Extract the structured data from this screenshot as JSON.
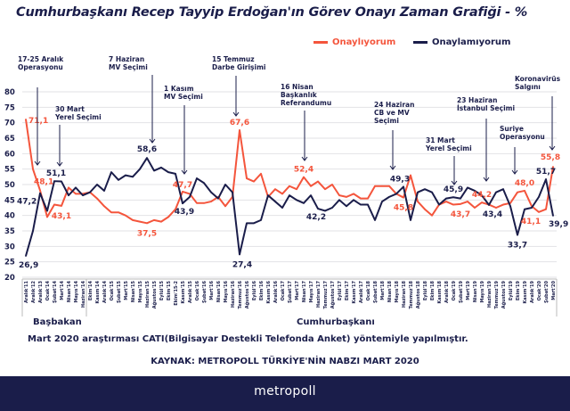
{
  "title": "Cumhurbaşkanı Recep Tayyip Erdoğan'ın Görev Onayı Zaman Grafiği - %",
  "colors": {
    "onayliyorum": "#f4553c",
    "onaylamiyorum": "#1a1d4a",
    "footer": "#1a1d4a"
  },
  "chart_data": {
    "type": "line",
    "title": "Cumhurbaşkanı Recep Tayyip Erdoğan'ın Görev Onayı Zaman Grafiği - %",
    "ylim": [
      20,
      80
    ],
    "yticks": [
      20,
      25,
      30,
      35,
      40,
      45,
      50,
      55,
      60,
      65,
      70,
      75,
      80
    ],
    "grid": true,
    "legend_position": "top-right",
    "categories": [
      "Aralık'11",
      "Aralık'12",
      "Aralık'13",
      "Ocak'14",
      "Şubat'14",
      "Mart'14",
      "Nisan'14",
      "Mayıs'14",
      "Haziran'14",
      "Ekim'14",
      "Kasım'14",
      "Aralık'14",
      "Ocak'15",
      "Şubat'15",
      "Mart'15",
      "Nisan'15",
      "Mayıs'15",
      "Haziran'15",
      "Ağustos'15",
      "Eylül'15",
      "Ekim'15",
      "Ekim'15-2",
      "Kasım'15",
      "Aralık'15",
      "Ocak'16",
      "Şubat'16",
      "Mart'16",
      "Nisan'16",
      "Mayıs'16",
      "Haziran'16",
      "Temmuz'16",
      "Ağustos'16",
      "Eylül'16",
      "Ekim'16",
      "Kasım'16",
      "Aralık'16",
      "Ocak'17",
      "Şubat'17",
      "Mart'17",
      "Nisan'17",
      "Mayıs'17",
      "Haziran'17",
      "Temmuz'17",
      "Ağustos'17",
      "Eylül'17",
      "Ekim'17",
      "Kasım'17",
      "Aralık'17",
      "Ocak'18",
      "Şubat'18",
      "Mart'18",
      "Nisan'18",
      "Mayıs'18",
      "Haziran'18",
      "Temmuz'18",
      "Ağustos'18",
      "Eylül'18",
      "Ekim'18",
      "Kasım'18",
      "Aralık'18",
      "Ocak'19",
      "Şubat'19",
      "Mart'19",
      "Nisan'19",
      "Mayıs'19",
      "Haziran'19",
      "Temmuz'19",
      "Ağustos'19",
      "Eylül'19",
      "Ekim'19",
      "Kasım'19",
      "Aralık'19",
      "Ocak'20",
      "Şubat'20",
      "Mart'20"
    ],
    "series": [
      {
        "name": "Onaylıyorum",
        "color": "#f4553c",
        "values": [
          71.1,
          55,
          48.1,
          39.5,
          43.5,
          43.1,
          49,
          47,
          47,
          47.5,
          45.5,
          43,
          41,
          41,
          40,
          38.5,
          38,
          37.5,
          38.5,
          38,
          39.5,
          42,
          47.7,
          47,
          44,
          44,
          44.5,
          46,
          43,
          46,
          67.6,
          52,
          51,
          53.5,
          46,
          48.5,
          47,
          49.5,
          48.5,
          52.4,
          49.5,
          51,
          48.5,
          50,
          46.5,
          46,
          47,
          45.5,
          45.5,
          49.5,
          49.5,
          49.5,
          47,
          45.8,
          53,
          44.5,
          42,
          40,
          43.5,
          44.5,
          43.5,
          43.7,
          44.5,
          42.5,
          44.2,
          43.5,
          42.5,
          43.5,
          44,
          47.5,
          48.0,
          43,
          41.1,
          42,
          55.8
        ],
        "labeled": [
          0,
          2,
          5,
          17,
          22,
          30,
          39,
          53,
          61,
          64,
          70,
          72,
          74
        ]
      },
      {
        "name": "Onaylamıyorum",
        "color": "#1a1d4a",
        "values": [
          26.9,
          35,
          47.2,
          41.5,
          51.1,
          51,
          46.5,
          49,
          46.5,
          47.5,
          50,
          48,
          54,
          51.5,
          53,
          52.5,
          55,
          58.6,
          54.5,
          55.5,
          54,
          53.5,
          43.9,
          46,
          52,
          50.5,
          47.5,
          45.5,
          50,
          47.5,
          27.4,
          37.5,
          37.5,
          38.5,
          46.5,
          44.5,
          42.5,
          46.5,
          45,
          44,
          46.5,
          42.2,
          41.5,
          42.5,
          45,
          43,
          45,
          43.5,
          43.5,
          38.5,
          44.5,
          46,
          47,
          49.3,
          38.5,
          47.5,
          48.5,
          47.5,
          43.5,
          45.5,
          45.9,
          45.5,
          49,
          48,
          46.5,
          43.4,
          47.5,
          48.5,
          43,
          33.7,
          42,
          42.5,
          46,
          51.7,
          39.9
        ],
        "labeled": [
          0,
          2,
          4,
          17,
          22,
          30,
          41,
          53,
          60,
          65,
          69,
          73,
          74
        ]
      }
    ],
    "periods": [
      {
        "label": "Başbakan",
        "from": "Aralık'11",
        "to": "Haziran'14"
      },
      {
        "label": "Cumhurbaşkanı",
        "from": "Ekim'14",
        "to": "Mart'20"
      }
    ],
    "annotations": [
      {
        "lines": [
          "17-25 Aralık",
          "Operasyonu"
        ],
        "at": "Aralık'13"
      },
      {
        "lines": [
          "30 Mart",
          "Yerel Seçimi"
        ],
        "at": "Mart'14"
      },
      {
        "lines": [
          "7 Haziran",
          "MV Seçimi"
        ],
        "at": "Haziran'15"
      },
      {
        "lines": [
          "1 Kasım",
          "MV Seçimi"
        ],
        "at": "Kasım'15"
      },
      {
        "lines": [
          "15 Temmuz",
          "Darbe Girişimi"
        ],
        "at": "Temmuz'16"
      },
      {
        "lines": [
          "16 Nisan",
          "Başkanlık",
          "Referandumu"
        ],
        "at": "Nisan'17"
      },
      {
        "lines": [
          "24 Haziran",
          "CB  ve MV",
          "Seçimi"
        ],
        "at": "Haziran'18"
      },
      {
        "lines": [
          "31 Mart",
          "Yerel Seçimi"
        ],
        "at": "Mart'19"
      },
      {
        "lines": [
          "23 Haziran",
          "İstanbul Seçimi"
        ],
        "at": "Haziran'19"
      },
      {
        "lines": [
          "Suriye",
          "Operasyonu"
        ],
        "at": "Ekim'19"
      },
      {
        "lines": [
          "Koronavirüs",
          "Salgını"
        ],
        "at": "Mart'20"
      }
    ]
  },
  "legend": {
    "approve": "Onaylıyorum",
    "disapprove": "Onaylamıyorum"
  },
  "groups": {
    "pm": "Başbakan",
    "president": "Cumhurbaşkanı"
  },
  "note": "Mart 2020 araştırması CATI(Bilgisayar Destekli Telefonda Anket) yöntemiyle yapılmıştır.",
  "source": "KAYNAK: METROPOLL TÜRKİYE'NİN NABZI MART 2020",
  "brand": "metropoll"
}
